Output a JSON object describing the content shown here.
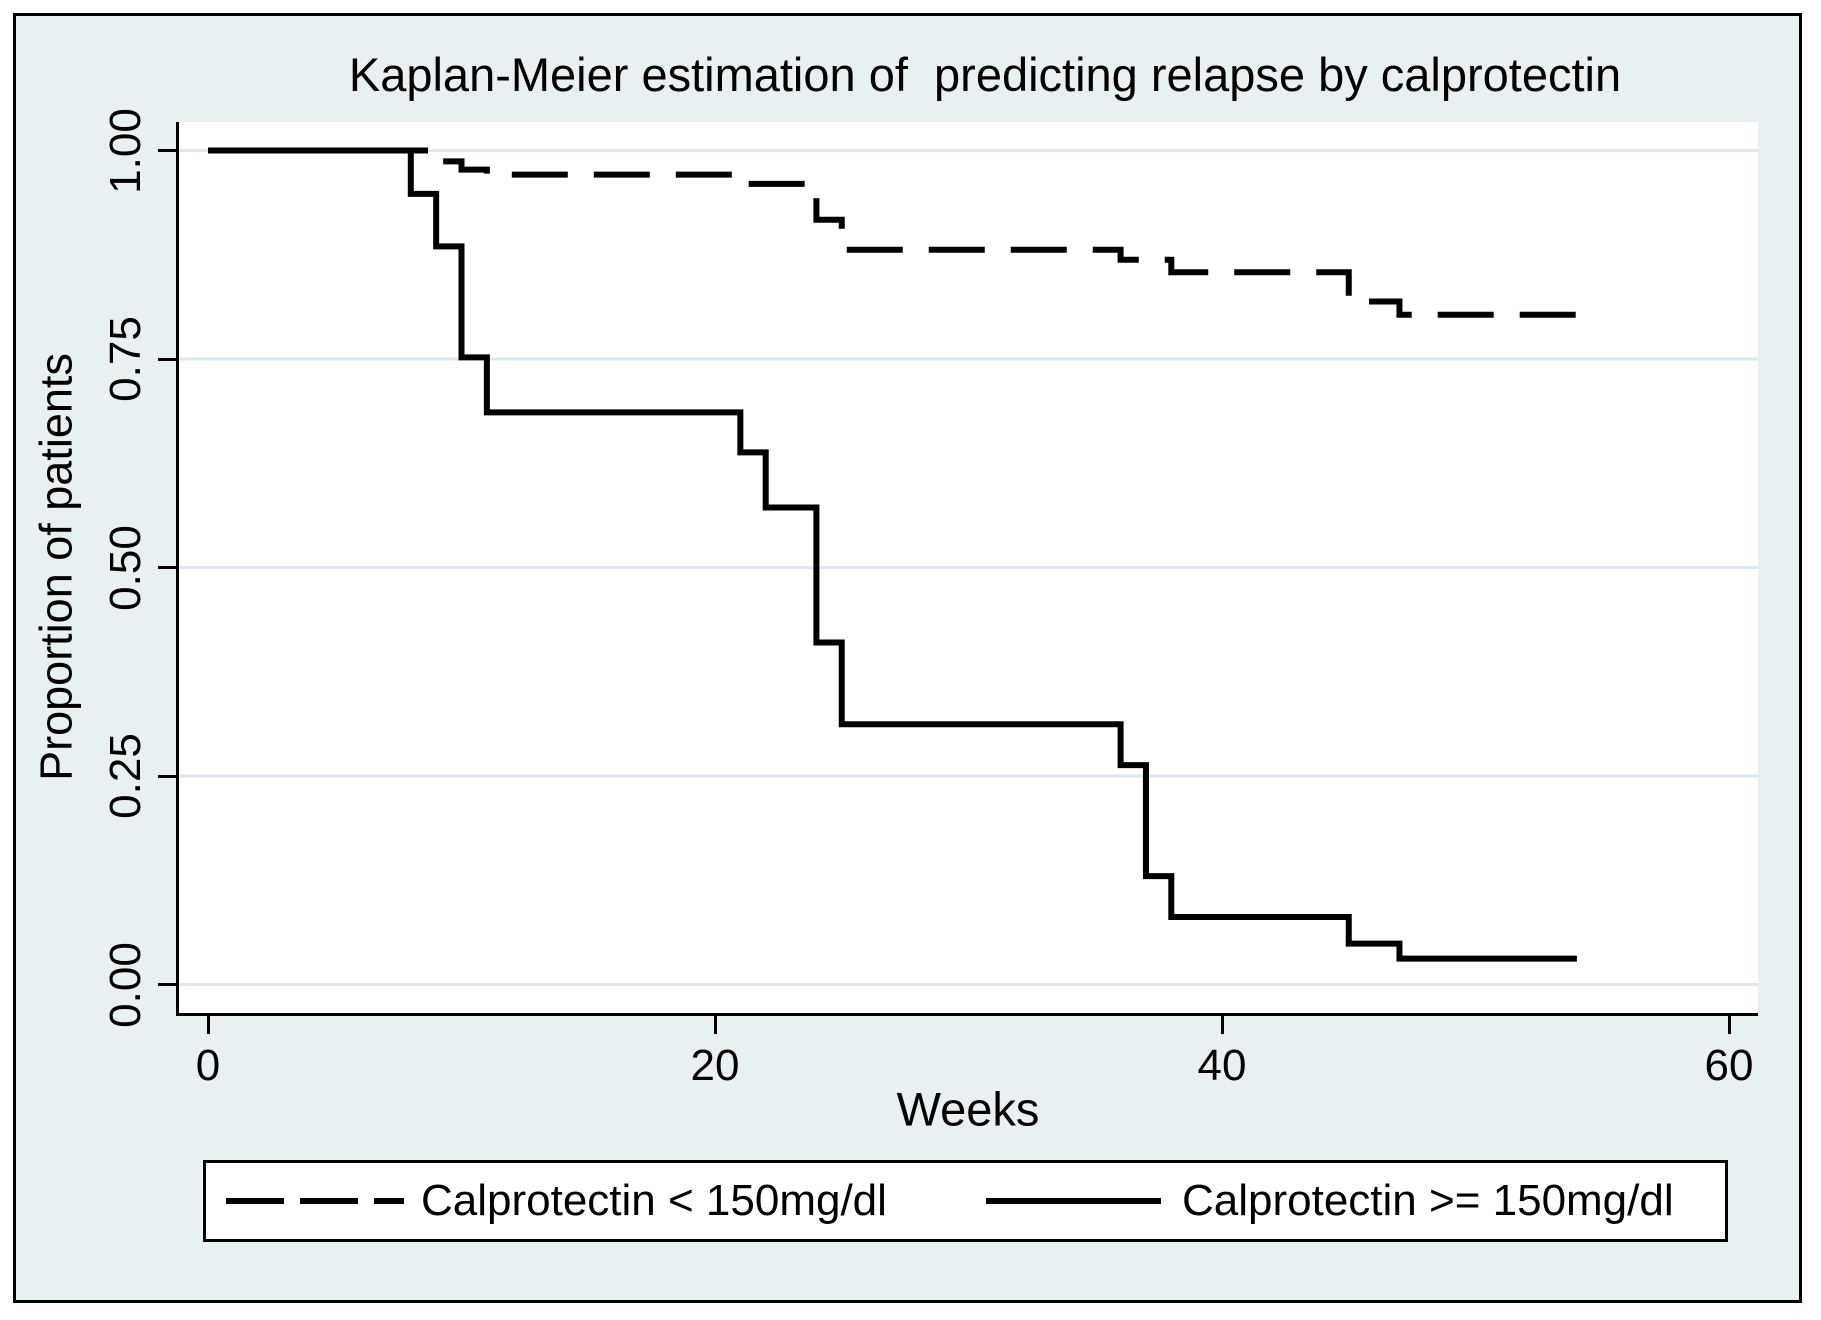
{
  "colors": {
    "background": "#e9f0f2",
    "plot_background": "#ffffff",
    "gridline": "#dfe9ec",
    "line": "#000000",
    "frame_border": "#000000"
  },
  "chart_data": {
    "type": "line",
    "variant": "kaplan-meier-step",
    "title": "Kaplan-Meier estimation of  predicting relapse by calprotectin",
    "xlabel": "Weeks",
    "ylabel": "Proportion of patients",
    "xlim": [
      0,
      60
    ],
    "ylim": [
      0.0,
      1.0
    ],
    "xticks": [
      "0",
      "20",
      "40",
      "60"
    ],
    "xtick_weeks": [
      0,
      20,
      40,
      60
    ],
    "yticks": [
      "0.00",
      "0.25",
      "0.50",
      "0.75",
      "1.00"
    ],
    "ytick_values": [
      0,
      0.25,
      0.5,
      0.75,
      1.0
    ],
    "grid": "horizontal gridlines at y ticks",
    "legend": {
      "position": "bottom",
      "items": [
        {
          "label": "Calprotectin < 150mg/dl",
          "line_style": "dashed"
        },
        {
          "label": "Calprotectin >= 150mg/dl",
          "line_style": "solid"
        }
      ]
    },
    "series": [
      {
        "name": "Calprotectin < 150mg/dl",
        "line_style": "dashed",
        "color": "#000000",
        "steps_week_survival": [
          [
            0,
            1.0
          ],
          [
            9,
            0.987
          ],
          [
            10,
            0.977
          ],
          [
            11,
            0.971
          ],
          [
            21,
            0.96
          ],
          [
            24,
            0.917
          ],
          [
            25,
            0.881
          ],
          [
            36,
            0.869
          ],
          [
            38,
            0.854
          ],
          [
            45,
            0.819
          ],
          [
            47,
            0.803
          ],
          [
            54,
            0.803
          ]
        ]
      },
      {
        "name": "Calprotectin >= 150mg/dl",
        "line_style": "solid",
        "color": "#000000",
        "steps_week_survival": [
          [
            0,
            1.0
          ],
          [
            8,
            0.948
          ],
          [
            9,
            0.885
          ],
          [
            10,
            0.752
          ],
          [
            11,
            0.686
          ],
          [
            21,
            0.638
          ],
          [
            22,
            0.572
          ],
          [
            24,
            0.41
          ],
          [
            25,
            0.312
          ],
          [
            36,
            0.263
          ],
          [
            37,
            0.13
          ],
          [
            38,
            0.081
          ],
          [
            45,
            0.049
          ],
          [
            47,
            0.031
          ],
          [
            54,
            0.031
          ]
        ]
      }
    ]
  }
}
